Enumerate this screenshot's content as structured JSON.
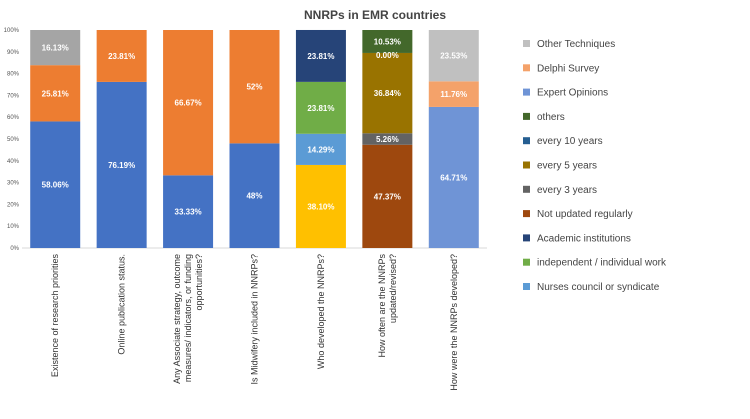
{
  "chart_data": {
    "type": "bar",
    "stacked": true,
    "title": "NNRPs in EMR countries",
    "xlabel": "",
    "ylabel": "",
    "ylim": [
      0,
      100
    ],
    "y_ticks": [
      "0%",
      "10%",
      "20%",
      "30%",
      "40%",
      "50%",
      "60%",
      "70%",
      "80%",
      "90%",
      "100%"
    ],
    "grid": false,
    "legend_position": "right",
    "categories": [
      "Existence of research priorities",
      "Online publication status.",
      "Any Associate strategy, outcome measures/ indicators, or funding opportunities?",
      "Is Midwifery included in NNRPs?",
      "Who developed the NNRPs?",
      "How often are the NNRPs updated/revised?",
      "How were the NNRPs developed?"
    ],
    "category_lines": [
      [
        "Existence of research priorities"
      ],
      [
        "Online publication status."
      ],
      [
        "Any Associate strategy, outcome",
        "measures/ indicators, or funding",
        "opportunities?"
      ],
      [
        "Is Midwifery included in NNRPs?"
      ],
      [
        "Who developed the NNRPs?"
      ],
      [
        "How often are the NNRPs",
        "updated/revised?"
      ],
      [
        "How were the NNRPs developed?"
      ]
    ],
    "bars": [
      [
        {
          "value": 58.06,
          "label": "58.06%",
          "color": "#4472c4"
        },
        {
          "value": 25.81,
          "label": "25.81%",
          "color": "#ed7d31"
        },
        {
          "value": 16.13,
          "label": "16.13%",
          "color": "#a5a5a5"
        }
      ],
      [
        {
          "value": 76.19,
          "label": "76.19%",
          "color": "#4472c4"
        },
        {
          "value": 23.81,
          "label": "23.81%",
          "color": "#ed7d31"
        }
      ],
      [
        {
          "value": 33.33,
          "label": "33.33%",
          "color": "#4472c4"
        },
        {
          "value": 66.67,
          "label": "66.67%",
          "color": "#ed7d31"
        }
      ],
      [
        {
          "value": 48,
          "label": "48%",
          "color": "#4472c4"
        },
        {
          "value": 52,
          "label": "52%",
          "color": "#ed7d31"
        }
      ],
      [
        {
          "value": 38.1,
          "label": "38.10%",
          "color": "#ffc000"
        },
        {
          "value": 14.29,
          "label": "14.29%",
          "color": "#5b9bd5"
        },
        {
          "value": 23.81,
          "label": "23.81%",
          "color": "#70ad47"
        },
        {
          "value": 23.81,
          "label": "23.81%",
          "color": "#264478"
        }
      ],
      [
        {
          "value": 47.37,
          "label": "47.37%",
          "color": "#9e480e"
        },
        {
          "value": 5.26,
          "label": "5.26%",
          "color": "#636363"
        },
        {
          "value": 36.84,
          "label": "36.84%",
          "color": "#997300"
        },
        {
          "value": 0.0,
          "label": "0.00%",
          "color": "#255e91"
        },
        {
          "value": 10.53,
          "label": "10.53%",
          "color": "#43682b"
        }
      ],
      [
        {
          "value": 64.71,
          "label": "64.71%",
          "color": "#6f94d6"
        },
        {
          "value": 11.76,
          "label": "11.76%",
          "color": "#f4a26a"
        },
        {
          "value": 23.53,
          "label": "23.53%",
          "color": "#c0c0c0"
        }
      ]
    ],
    "legend": [
      {
        "name": "Other Techniques",
        "color": "#c0c0c0"
      },
      {
        "name": "Delphi Survey",
        "color": "#f4a26a"
      },
      {
        "name": "Expert Opinions",
        "color": "#6f94d6"
      },
      {
        "name": "others",
        "color": "#43682b"
      },
      {
        "name": "every 10 years",
        "color": "#255e91"
      },
      {
        "name": "every 5 years",
        "color": "#997300"
      },
      {
        "name": "every 3 years",
        "color": "#636363"
      },
      {
        "name": "Not updated regularly",
        "color": "#9e480e"
      },
      {
        "name": "Academic institutions",
        "color": "#264478"
      },
      {
        "name": "independent / individual work",
        "color": "#70ad47"
      },
      {
        "name": "Nurses council or syndicate",
        "color": "#5b9bd5"
      }
    ]
  }
}
